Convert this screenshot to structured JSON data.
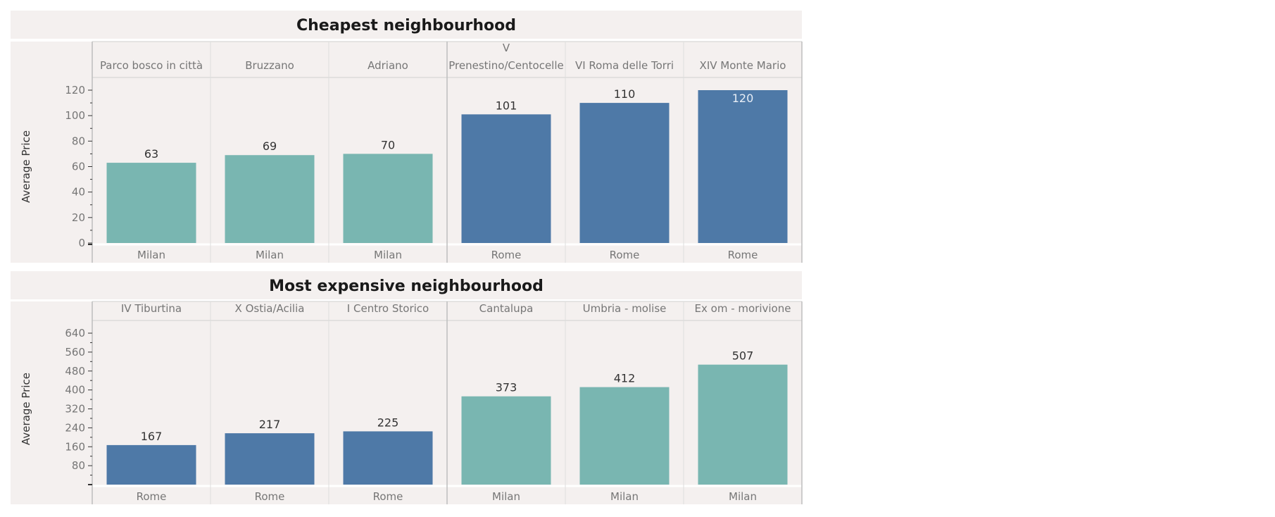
{
  "chart_data": [
    {
      "type": "bar",
      "title": "Cheapest neighbourhood",
      "ylabel": "Average Price",
      "ylim": [
        0,
        120
      ],
      "yticks": [
        0,
        20,
        40,
        60,
        80,
        100,
        120
      ],
      "categories": [
        "Parco bosco in città",
        "Bruzzano",
        "Adriano",
        [
          "V",
          "Prenestino/Centocelle"
        ],
        "VI Roma delle Torri",
        "XIV Monte Mario"
      ],
      "cities": [
        "Milan",
        "Milan",
        "Milan",
        "Rome",
        "Rome",
        "Rome"
      ],
      "values": [
        63,
        69,
        70,
        101,
        110,
        120
      ]
    },
    {
      "type": "bar",
      "title": "Most expensive neighbourhood",
      "ylabel": "Average Price",
      "ylim": [
        0,
        640
      ],
      "yticks": [
        80,
        160,
        240,
        320,
        400,
        480,
        560,
        640
      ],
      "categories": [
        "IV Tiburtina",
        "X Ostia/Acilia",
        "I Centro Storico",
        "Cantalupa",
        "Umbria - molise",
        "Ex om - morivione"
      ],
      "cities": [
        "Rome",
        "Rome",
        "Rome",
        "Milan",
        "Milan",
        "Milan"
      ],
      "values": [
        167,
        217,
        225,
        373,
        412,
        507
      ]
    }
  ],
  "colors": {
    "Milan": "#79b6b1",
    "Rome": "#4e79a7",
    "panel_bg": "#f4f0ef",
    "text": "#767676",
    "title": "#1a1a1a"
  }
}
